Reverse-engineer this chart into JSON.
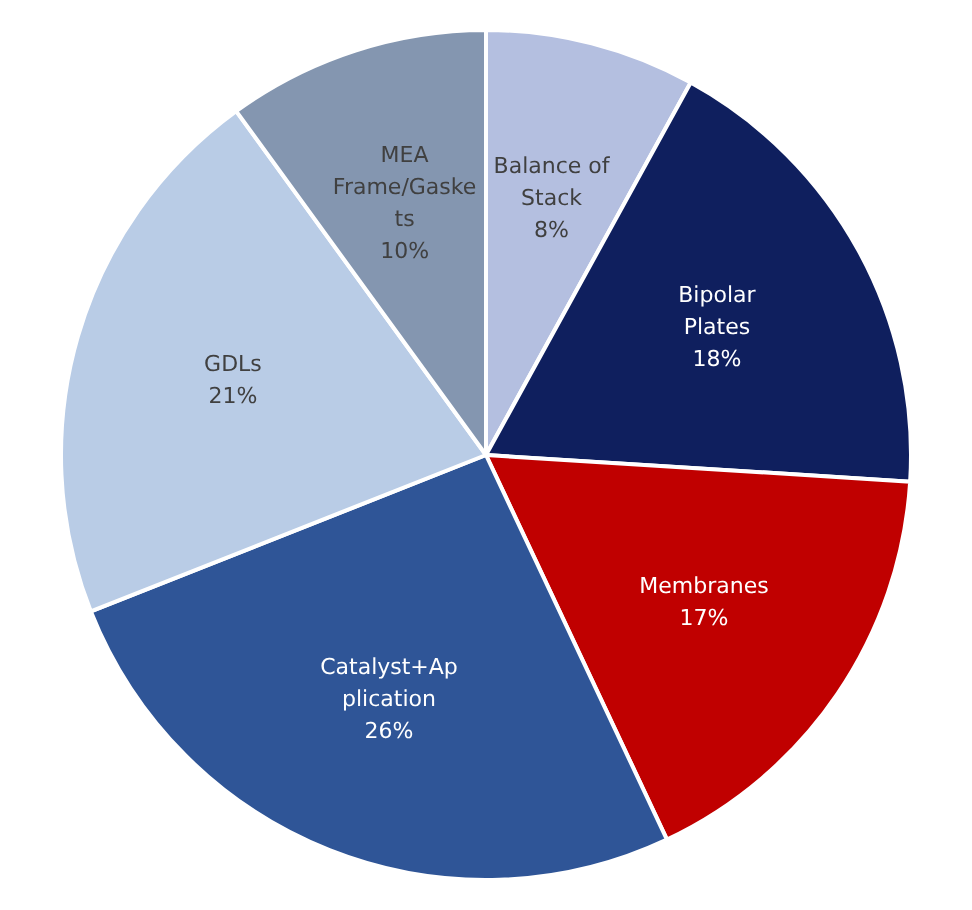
{
  "chart_data": {
    "type": "pie",
    "categories": [
      "Balance of Stack",
      "Bipolar Plates",
      "Membranes",
      "Catalyst+Application",
      "GDLs",
      "MEA Frame/Gaskets"
    ],
    "values": [
      8,
      18,
      17,
      26,
      21,
      10
    ],
    "colors": [
      "#b4bfe0",
      "#0f1f5e",
      "#c00000",
      "#2f5597",
      "#b9cce6",
      "#8496b0"
    ],
    "value_labels": [
      "8%",
      "18%",
      "17%",
      "26%",
      "21%",
      "10%"
    ],
    "legend": false
  }
}
